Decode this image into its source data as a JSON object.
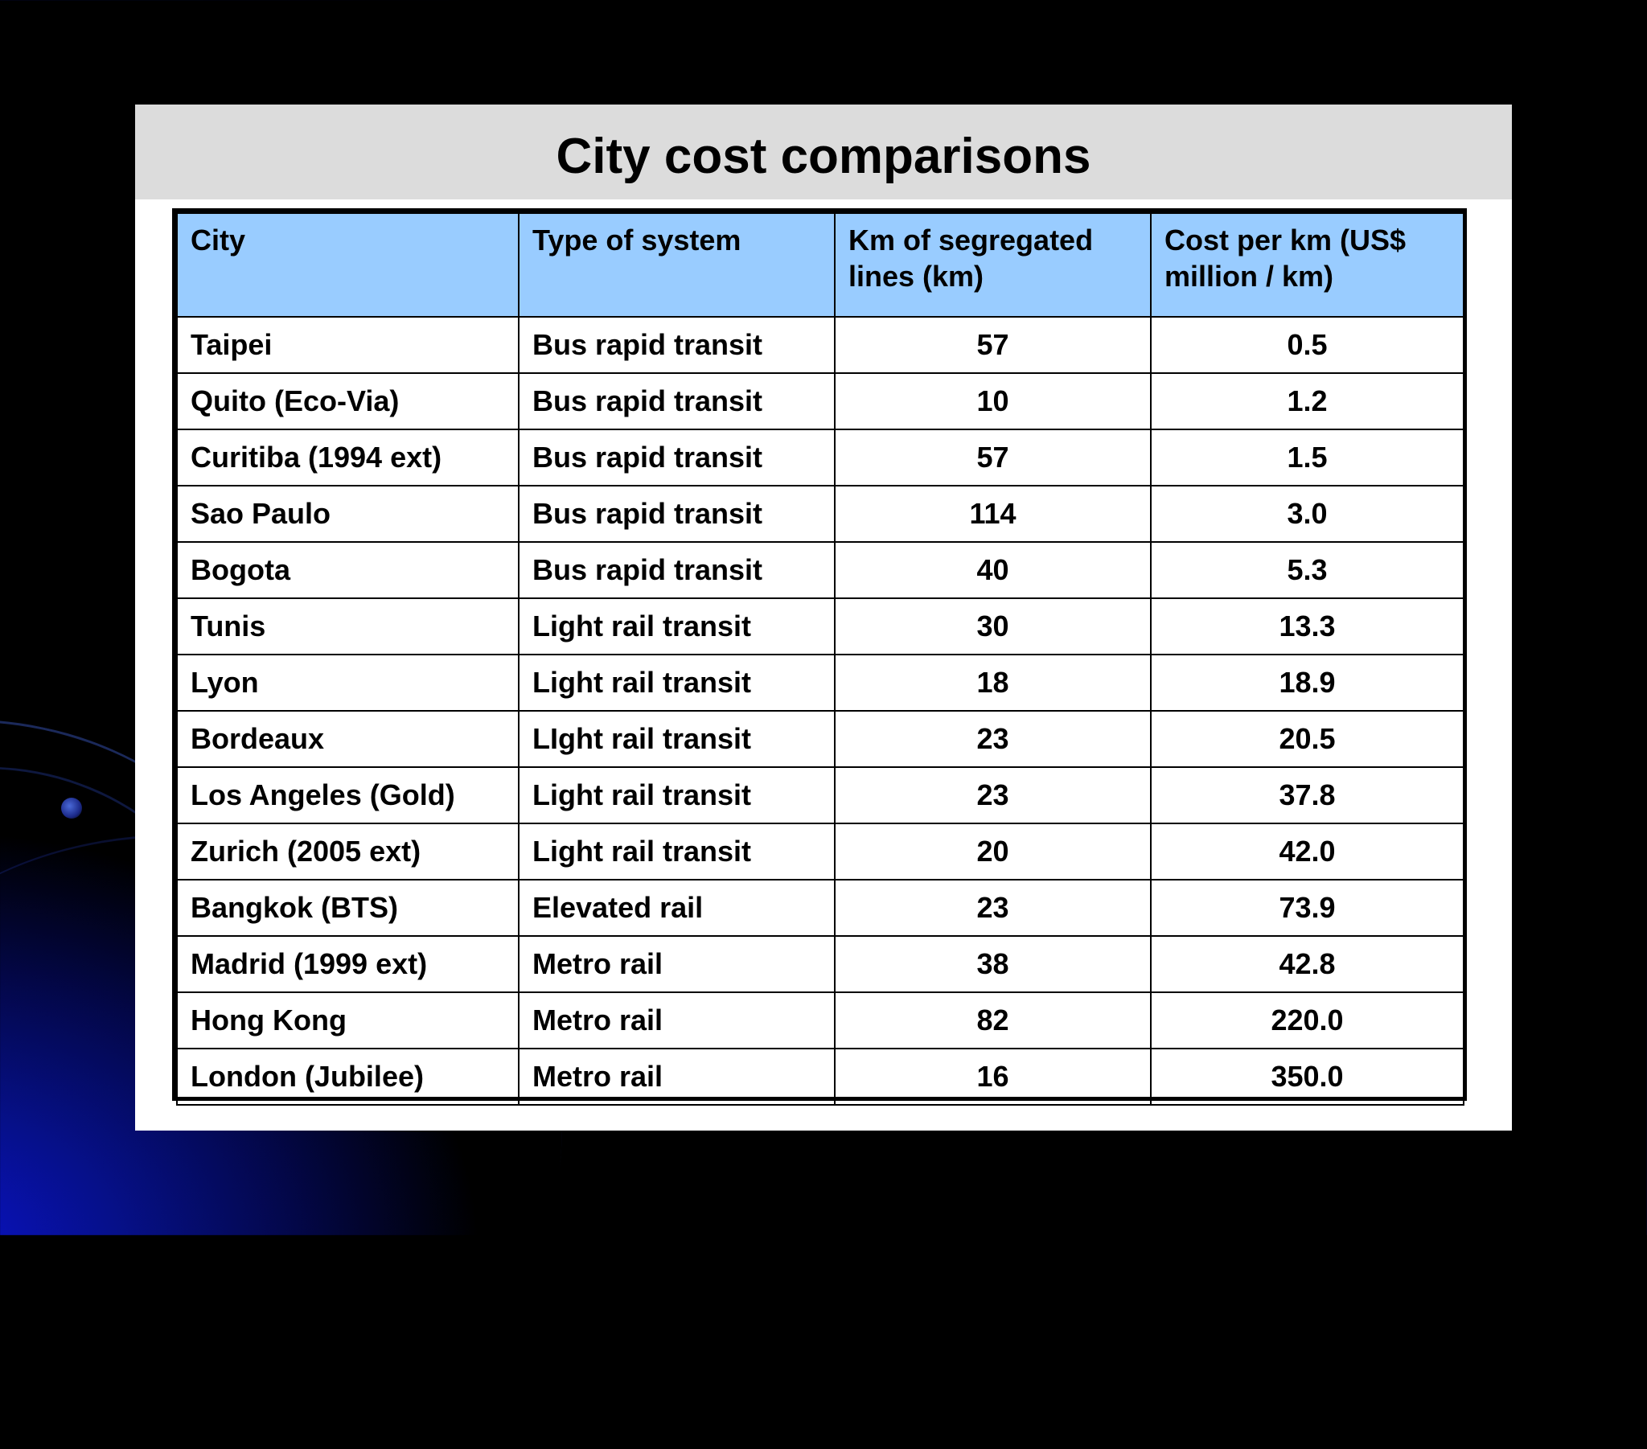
{
  "slide": {
    "title": "City cost comparisons"
  },
  "table": {
    "headers": [
      "City",
      "Type of system",
      "Km of segregated lines (km)",
      "Cost per km (US$ million / km)"
    ],
    "rows": [
      [
        "Taipei",
        "Bus rapid transit",
        "57",
        "0.5"
      ],
      [
        "Quito (Eco-Via)",
        "Bus rapid transit",
        "10",
        "1.2"
      ],
      [
        "Curitiba (1994 ext)",
        "Bus rapid transit",
        "57",
        "1.5"
      ],
      [
        "Sao Paulo",
        "Bus rapid transit",
        "114",
        "3.0"
      ],
      [
        "Bogota",
        "Bus rapid transit",
        "40",
        "5.3"
      ],
      [
        "Tunis",
        "Light rail transit",
        "30",
        "13.3"
      ],
      [
        "Lyon",
        "Light rail transit",
        "18",
        "18.9"
      ],
      [
        "Bordeaux",
        "LIght rail transit",
        "23",
        "20.5"
      ],
      [
        "Los Angeles (Gold)",
        "Light rail transit",
        "23",
        "37.8"
      ],
      [
        "Zurich (2005 ext)",
        "Light rail transit",
        "20",
        "42.0"
      ],
      [
        "Bangkok (BTS)",
        "Elevated rail",
        "23",
        "73.9"
      ],
      [
        "Madrid (1999 ext)",
        "Metro rail",
        "38",
        "42.8"
      ],
      [
        "Hong Kong",
        "Metro rail",
        "82",
        "220.0"
      ],
      [
        "London (Jubilee)",
        "Metro rail",
        "16",
        "350.0"
      ]
    ]
  },
  "colors": {
    "background": "#000000",
    "background_glow": "#0a12c8",
    "title_bar": "#dcdcdc",
    "header_fill": "#99ccff",
    "border": "#000000"
  }
}
